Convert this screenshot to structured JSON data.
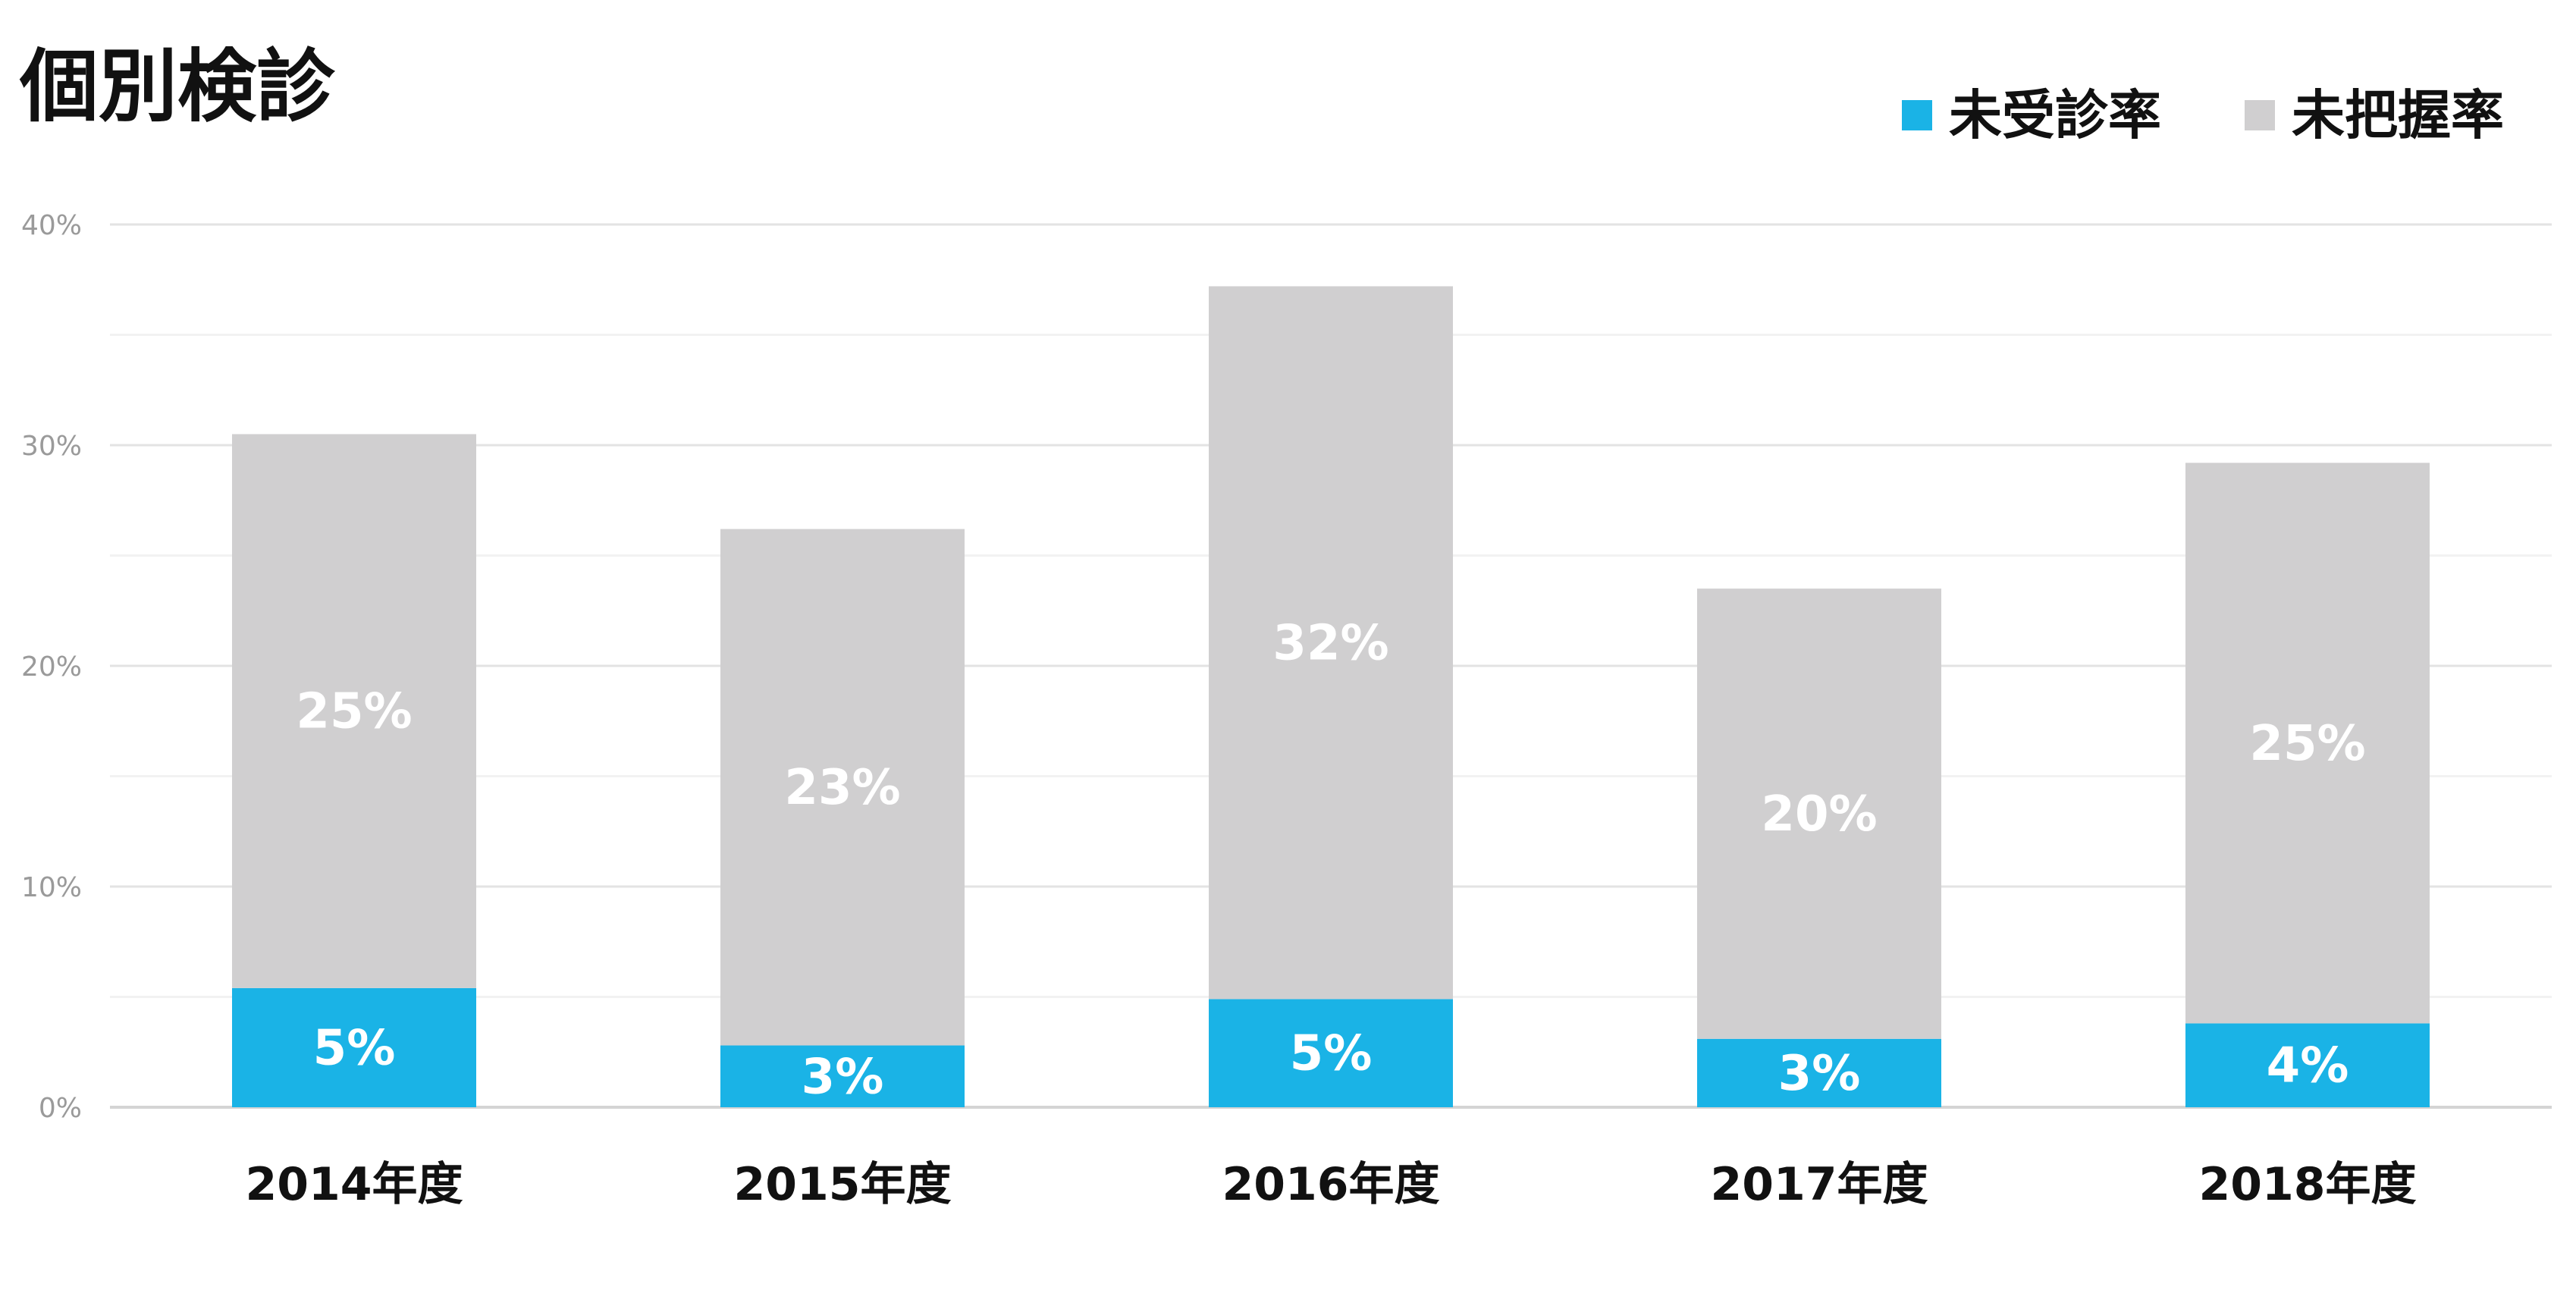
{
  "chart_data": {
    "type": "bar",
    "stacked": true,
    "title": "個別検診",
    "xlabel": "",
    "ylabel": "",
    "categories": [
      "2014年度",
      "2015年度",
      "2016年度",
      "2017年度",
      "2018年度"
    ],
    "series": [
      {
        "name": "未受診率",
        "color": "#1ab3e6",
        "values": [
          5.4,
          2.8,
          4.9,
          3.1,
          3.8
        ],
        "labels": [
          "5%",
          "3%",
          "5%",
          "3%",
          "4%"
        ]
      },
      {
        "name": "未把握率",
        "color": "#d0cfd0",
        "values": [
          25.1,
          23.4,
          32.3,
          20.4,
          25.4
        ],
        "labels": [
          "25%",
          "23%",
          "32%",
          "20%",
          "25%"
        ]
      }
    ],
    "ylim": [
      0,
      40
    ],
    "yticks": [
      0,
      10,
      20,
      30,
      40
    ],
    "ytick_labels": [
      "0%",
      "10%",
      "20%",
      "30%",
      "40%"
    ],
    "grid": true,
    "legend_position": "top-right"
  }
}
